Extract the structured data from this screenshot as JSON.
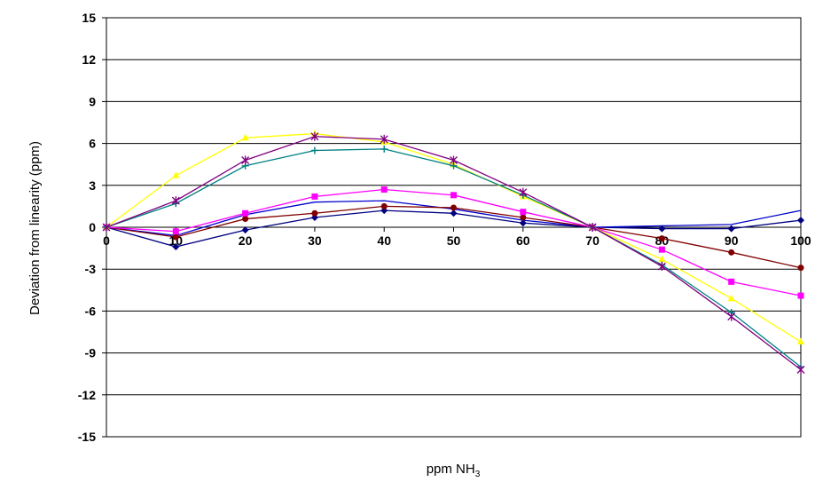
{
  "chart_data": {
    "type": "line",
    "title": "",
    "xlabel_main": "ppm NH",
    "xlabel_sub": "3",
    "ylabel": "Deviation from linearity (ppm)",
    "xlim": [
      0,
      100
    ],
    "ylim": [
      -15,
      15
    ],
    "x_ticks": [
      "0",
      "10",
      "20",
      "30",
      "40",
      "50",
      "60",
      "70",
      "80",
      "90",
      "100"
    ],
    "y_ticks": [
      "15",
      "12",
      "9",
      "6",
      "3",
      "0",
      "-3",
      "-6",
      "-9",
      "-12",
      "-15"
    ],
    "grid": "horizontal",
    "legend": "none",
    "x": [
      0,
      10,
      20,
      30,
      40,
      50,
      60,
      70,
      80,
      90,
      100
    ],
    "series": [
      {
        "color": "#000080",
        "marker": "diamond",
        "values": [
          0,
          -1.4,
          -0.2,
          0.7,
          1.2,
          1.0,
          0.3,
          0,
          -0.1,
          -0.1,
          0.5
        ]
      },
      {
        "color": "#0000cc",
        "marker": "none",
        "values": [
          0,
          -0.6,
          0.9,
          1.8,
          1.9,
          1.3,
          0.5,
          0,
          0.1,
          0.2,
          1.2
        ]
      },
      {
        "color": "#800000",
        "marker": "circle",
        "values": [
          0,
          -0.7,
          0.6,
          1.0,
          1.5,
          1.4,
          0.7,
          0,
          -0.8,
          -1.8,
          -2.9
        ]
      },
      {
        "color": "#ff00ff",
        "marker": "square",
        "values": [
          0,
          -0.3,
          1.0,
          2.2,
          2.7,
          2.3,
          1.1,
          0,
          -1.6,
          -3.9,
          -4.9
        ]
      },
      {
        "color": "#ffff00",
        "marker": "triangle",
        "values": [
          0,
          3.7,
          6.4,
          6.7,
          6.1,
          4.5,
          2.2,
          0,
          -2.3,
          -5.1,
          -8.2
        ]
      },
      {
        "color": "#008080",
        "marker": "plus",
        "values": [
          0,
          1.7,
          4.4,
          5.5,
          5.6,
          4.4,
          2.3,
          0,
          -2.7,
          -6.1,
          -10.0
        ]
      },
      {
        "color": "#800080",
        "marker": "star",
        "values": [
          0,
          1.9,
          4.8,
          6.5,
          6.3,
          4.8,
          2.5,
          0,
          -2.8,
          -6.4,
          -10.2
        ]
      }
    ]
  }
}
